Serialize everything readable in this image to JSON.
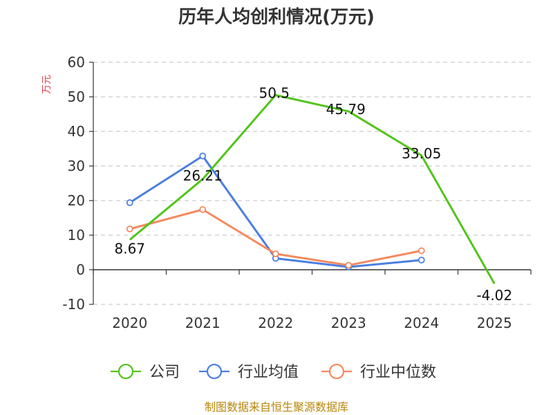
{
  "chart_data": {
    "type": "line",
    "title": "历年人均创利情况(万元)",
    "ylabel": "万元",
    "xlabel": "",
    "categories": [
      "2020",
      "2021",
      "2022",
      "2023",
      "2024",
      "2025"
    ],
    "ylim": [
      -10,
      60
    ],
    "yticks": [
      60,
      50,
      40,
      30,
      20,
      10,
      0,
      -10
    ],
    "grid": true,
    "legend_position": "bottom",
    "series": [
      {
        "name": "公司",
        "color": "#52c41a",
        "values": [
          8.67,
          26.21,
          50.5,
          45.79,
          33.05,
          -4.02
        ],
        "labels": [
          "8.67",
          "26.21",
          "50.5",
          "45.79",
          "33.05",
          "-4.02"
        ]
      },
      {
        "name": "行业均值",
        "color": "#4a7fe0",
        "values": [
          19.4,
          32.9,
          3.3,
          0.8,
          2.8,
          null
        ]
      },
      {
        "name": "行业中位数",
        "color": "#f4895f",
        "values": [
          11.8,
          17.4,
          4.6,
          1.3,
          5.5,
          null
        ]
      }
    ]
  },
  "source": "制图数据来自恒生聚源数据库"
}
